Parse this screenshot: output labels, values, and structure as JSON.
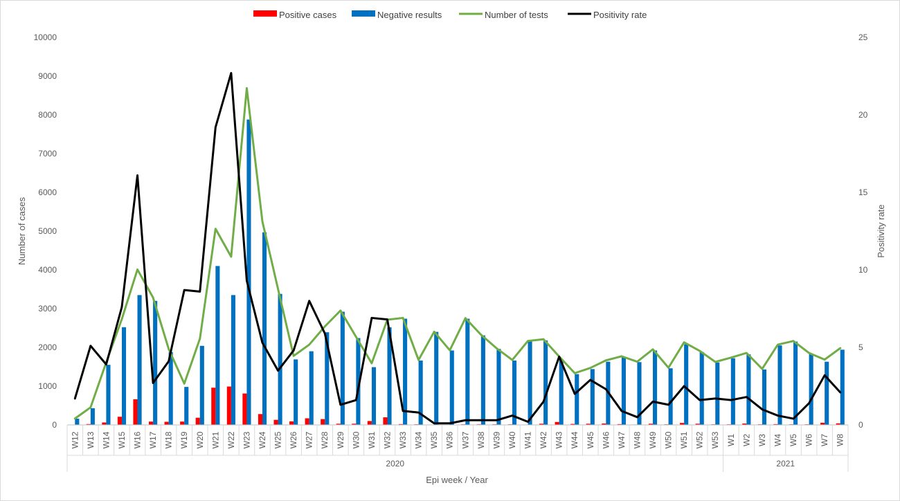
{
  "chart_data": {
    "type": "bar",
    "legend": {
      "placement": "top-center",
      "items": [
        "Positive cases",
        "Negative results",
        "Number of tests",
        "Positivity rate"
      ]
    },
    "ylabel": "Number of cases",
    "y2label": "Positivity rate",
    "xlabel": "Epi week / Year",
    "ylim": [
      0,
      10000
    ],
    "y2lim": [
      0,
      25
    ],
    "yticks": [
      "0",
      "1000",
      "2000",
      "3000",
      "4000",
      "5000",
      "6000",
      "7000",
      "8000",
      "9000",
      "10000"
    ],
    "y2ticks": [
      "0",
      "5",
      "10",
      "15",
      "20",
      "25"
    ],
    "grid": false,
    "categories": [
      "W12",
      "W13",
      "W14",
      "W15",
      "W16",
      "W17",
      "W18",
      "W19",
      "W20",
      "W21",
      "W22",
      "W23",
      "W24",
      "W25",
      "W26",
      "W27",
      "W28",
      "W29",
      "W30",
      "W31",
      "W32",
      "W33",
      "W34",
      "W35",
      "W36",
      "W37",
      "W38",
      "W39",
      "W40",
      "W41",
      "W42",
      "W43",
      "W44",
      "W45",
      "W46",
      "W47",
      "W48",
      "W49",
      "W50",
      "W51",
      "W52",
      "W53",
      "W1",
      "W2",
      "W3",
      "W4",
      "W5",
      "W6",
      "W7",
      "W8"
    ],
    "year_groups": [
      {
        "label": "2020",
        "count": 42
      },
      {
        "label": "2021",
        "count": 8
      }
    ],
    "series": [
      {
        "name": "Positive cases",
        "kind": "bar",
        "axis": "left",
        "color": "#ff0000",
        "values": [
          3,
          22,
          62,
          210,
          660,
          85,
          80,
          85,
          185,
          960,
          990,
          810,
          280,
          130,
          90,
          170,
          150,
          30,
          30,
          100,
          195,
          20,
          15,
          5,
          5,
          15,
          15,
          15,
          15,
          5,
          30,
          75,
          25,
          30,
          35,
          20,
          10,
          30,
          15,
          50,
          30,
          15,
          15,
          35,
          15,
          20,
          15,
          15,
          55,
          40
        ]
      },
      {
        "name": "Negative results",
        "kind": "bar",
        "axis": "left",
        "color": "#0070c0",
        "values": [
          160,
          430,
          1550,
          2520,
          3350,
          3200,
          1880,
          980,
          2040,
          4100,
          3350,
          7880,
          4970,
          3380,
          1690,
          1900,
          2390,
          2920,
          2240,
          1490,
          2520,
          2740,
          1660,
          2400,
          1920,
          2740,
          2310,
          1960,
          1660,
          2160,
          2180,
          1690,
          1310,
          1440,
          1630,
          1750,
          1620,
          1920,
          1460,
          2080,
          1880,
          1610,
          1720,
          1820,
          1430,
          2050,
          2150,
          1840,
          1630,
          1940
        ]
      },
      {
        "name": "Number of tests",
        "kind": "line",
        "axis": "left",
        "color": "#70ad47",
        "values": [
          163,
          452,
          1612,
          2730,
          4010,
          3285,
          1960,
          1065,
          2225,
          5060,
          4340,
          8690,
          5250,
          3510,
          1780,
          2070,
          2540,
          2950,
          2270,
          1590,
          2715,
          2760,
          1675,
          2405,
          1925,
          2755,
          2325,
          1975,
          1675,
          2165,
          2210,
          1765,
          1335,
          1470,
          1665,
          1770,
          1630,
          1950,
          1475,
          2130,
          1910,
          1625,
          1735,
          1855,
          1445,
          2070,
          2165,
          1855,
          1685,
          1980
        ]
      },
      {
        "name": "Positivity rate",
        "kind": "line",
        "axis": "right",
        "color": "#000000",
        "values": [
          1.7,
          5.1,
          3.9,
          7.6,
          16.1,
          2.7,
          4.1,
          8.7,
          8.6,
          19.2,
          22.7,
          9.3,
          5.3,
          3.5,
          4.8,
          8.0,
          5.9,
          1.3,
          1.6,
          6.9,
          6.8,
          0.9,
          0.8,
          0.1,
          0.1,
          0.3,
          0.3,
          0.3,
          0.6,
          0.2,
          1.5,
          4.4,
          2.0,
          2.9,
          2.3,
          0.9,
          0.5,
          1.5,
          1.3,
          2.5,
          1.6,
          1.7,
          1.6,
          1.8,
          1.0,
          0.6,
          0.4,
          1.4,
          3.2,
          2.1
        ]
      }
    ]
  }
}
